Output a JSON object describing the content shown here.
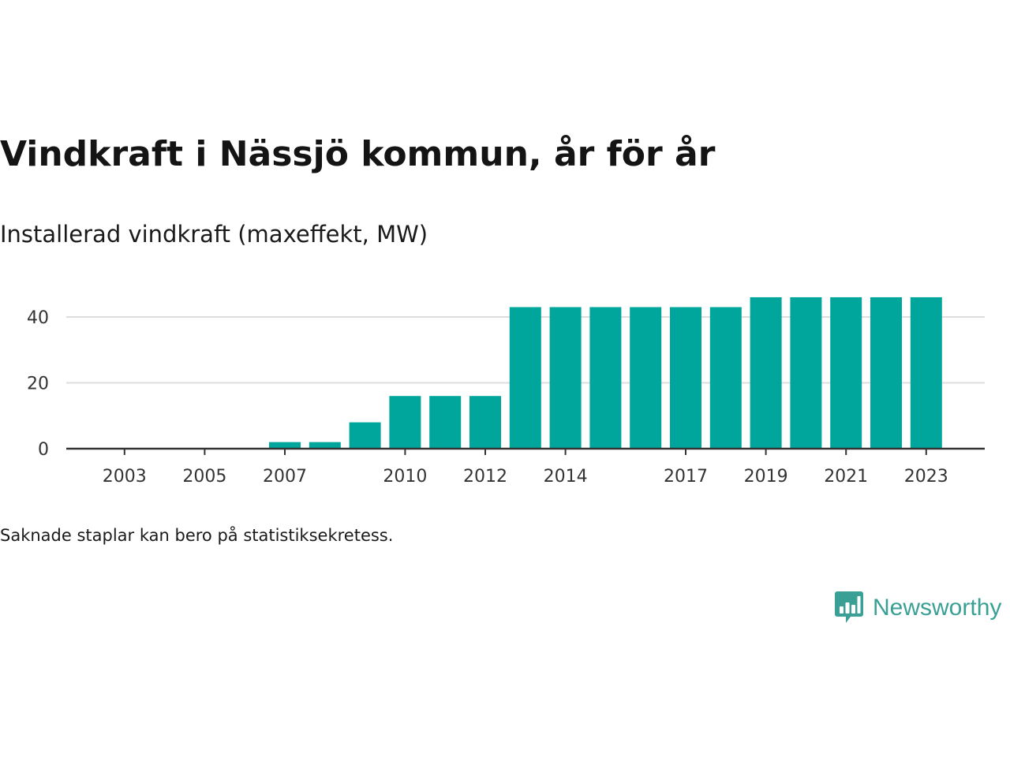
{
  "header": {
    "title": "Vindkraft i Nässjö kommun, år för år",
    "subtitle": "Installerad vindkraft (maxeffekt, MW)"
  },
  "footnote": "Saknade staplar kan bero på statistiksekretess.",
  "brand": {
    "name": "Newsworthy",
    "icon": "newsworthy-logo-icon",
    "color": "#3aa095"
  },
  "colors": {
    "bar": "#00a69c",
    "grid": "#dddddd",
    "axis": "#333333"
  },
  "chart_data": {
    "type": "bar",
    "title": "Vindkraft i Nässjö kommun, år för år",
    "subtitle": "Installerad vindkraft (maxeffekt, MW)",
    "categories": [
      2002,
      2003,
      2004,
      2005,
      2006,
      2007,
      2008,
      2009,
      2010,
      2011,
      2012,
      2013,
      2014,
      2015,
      2016,
      2017,
      2018,
      2019,
      2020,
      2021,
      2022,
      2023
    ],
    "values": [
      0,
      0,
      0,
      0,
      0,
      2,
      2,
      8,
      16,
      16,
      16,
      43,
      43,
      43,
      43,
      43,
      43,
      46,
      46,
      46,
      46,
      46
    ],
    "x_tick_labels": [
      "2003",
      "2005",
      "2007",
      "2010",
      "2012",
      "2014",
      "2017",
      "2019",
      "2021",
      "2023"
    ],
    "y_ticks": [
      0,
      20,
      40
    ],
    "ylim": [
      0,
      48
    ],
    "grid": true
  }
}
